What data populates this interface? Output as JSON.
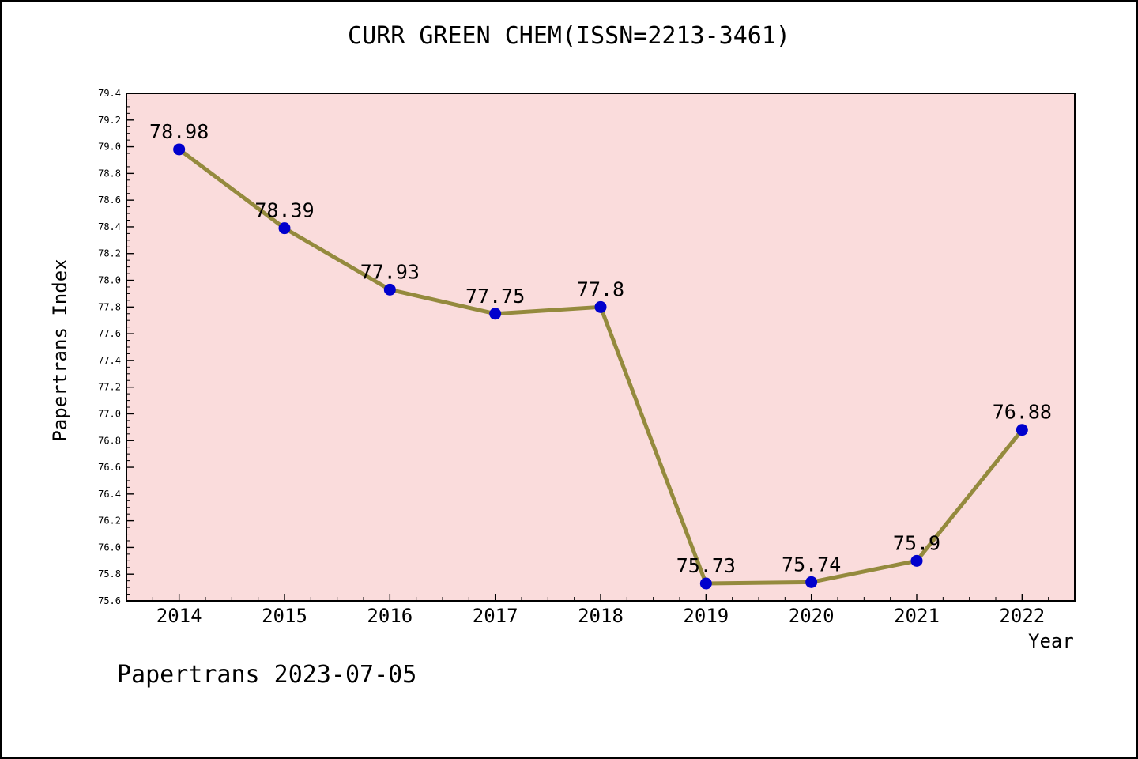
{
  "footer": "Papertrans 2023-07-05",
  "chart_data": {
    "type": "line",
    "title": "CURR GREEN CHEM(ISSN=2213-3461)",
    "xlabel": "Year",
    "ylabel": "Papertrans Index",
    "x": [
      2014,
      2015,
      2016,
      2017,
      2018,
      2019,
      2020,
      2021,
      2022
    ],
    "values": [
      78.98,
      78.39,
      77.93,
      77.75,
      77.8,
      75.73,
      75.74,
      75.9,
      76.88
    ],
    "point_labels": [
      "78.98",
      "78.39",
      "77.93",
      "77.75",
      "77.8",
      "75.73",
      "75.74",
      "75.9",
      "76.88"
    ],
    "xlim": [
      2013.5,
      2022.5
    ],
    "ylim": [
      75.6,
      79.4
    ],
    "ytick_step": 0.2,
    "grid": false,
    "legend": "none",
    "colors": {
      "plot_bg": "#fadcdc",
      "line": "#948a3d",
      "marker": "#0000cd",
      "text": "#000000"
    }
  }
}
